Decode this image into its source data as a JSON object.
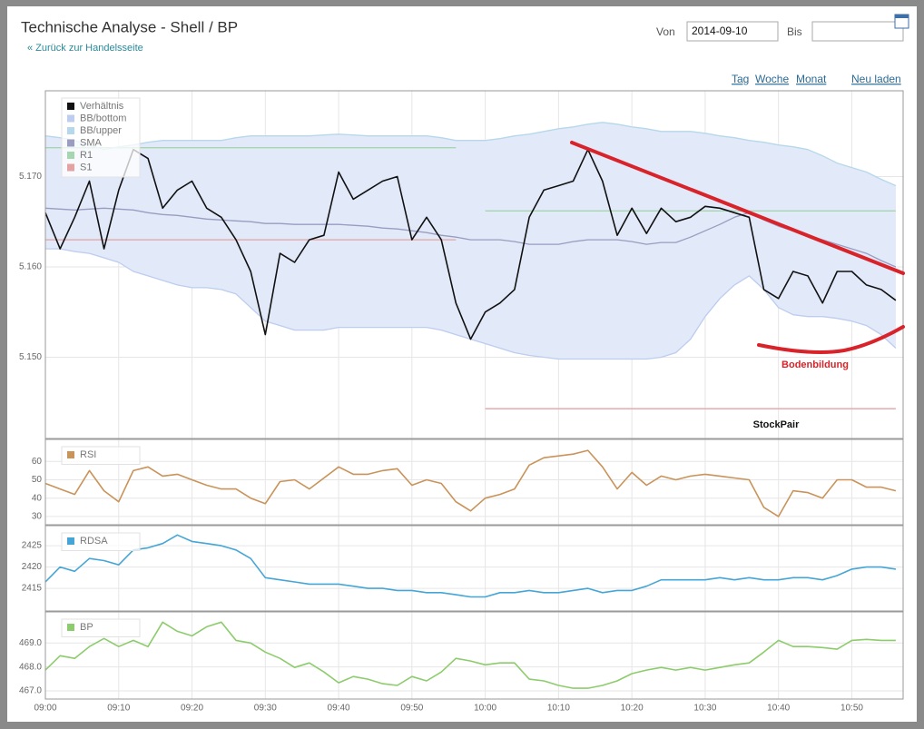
{
  "header": {
    "title": "Technische Analyse - Shell / BP",
    "back_link": "« Zurück zur Handelsseite",
    "from_label": "Von",
    "from_value": "2014-09-10",
    "to_label": "Bis",
    "links": [
      "Tag",
      "Woche",
      "Monat",
      "Neu laden"
    ]
  },
  "chart_data": [
    {
      "type": "line",
      "x": [
        "09:00",
        "09:02",
        "09:04",
        "09:06",
        "09:08",
        "09:10",
        "09:12",
        "09:14",
        "09:16",
        "09:18",
        "09:20",
        "09:22",
        "09:24",
        "09:26",
        "09:28",
        "09:30",
        "09:32",
        "09:34",
        "09:36",
        "09:38",
        "09:40",
        "09:42",
        "09:44",
        "09:46",
        "09:48",
        "09:50",
        "09:52",
        "09:54",
        "09:56",
        "09:58",
        "10:00",
        "10:02",
        "10:04",
        "10:06",
        "10:08",
        "10:10",
        "10:12",
        "10:14",
        "10:16",
        "10:18",
        "10:20",
        "10:22",
        "10:24",
        "10:26",
        "10:28",
        "10:30",
        "10:32",
        "10:34",
        "10:36",
        "10:38",
        "10:40",
        "10:42",
        "10:44",
        "10:46",
        "10:48",
        "10:50",
        "10:52",
        "10:54",
        "10:56"
      ],
      "xlim": [
        "09:00",
        "10:57"
      ],
      "xticks": [
        "09:00",
        "09:10",
        "09:20",
        "09:30",
        "09:40",
        "09:50",
        "10:00",
        "10:10",
        "10:20",
        "10:30",
        "10:40",
        "10:50"
      ],
      "ylim": [
        5.141,
        5.1795
      ],
      "yticks": [
        {
          "value": 5.15,
          "label": "5.150"
        },
        {
          "value": 5.16,
          "label": "5.160"
        },
        {
          "value": 5.17,
          "label": "5.170"
        }
      ],
      "grid": true,
      "band_fill": "#e2e9f9",
      "annotations": [
        "Bodenbildung",
        "StockPair"
      ],
      "series": [
        {
          "name": "Verhältnis",
          "color": "#111111",
          "values": [
            5.166,
            5.162,
            5.1655,
            5.1695,
            5.162,
            5.1685,
            5.173,
            5.172,
            5.1665,
            5.1685,
            5.1695,
            5.1665,
            5.1655,
            5.163,
            5.1595,
            5.1525,
            5.1615,
            5.1605,
            5.163,
            5.1635,
            5.1705,
            5.1675,
            5.1685,
            5.1695,
            5.17,
            5.163,
            5.1655,
            5.163,
            5.156,
            5.152,
            5.155,
            5.156,
            5.1575,
            5.1655,
            5.1685,
            5.169,
            5.1695,
            5.173,
            5.1695,
            5.1635,
            5.1665,
            5.1637,
            5.1665,
            5.165,
            5.1655,
            5.1667,
            5.1665,
            5.166,
            5.1655,
            5.1575,
            5.1565,
            5.1595,
            5.159,
            5.156,
            5.1595,
            5.1595,
            5.158,
            5.1575,
            5.1563
          ]
        },
        {
          "name": "BB/bottom",
          "color": "#bccdef",
          "values": [
            5.162,
            5.162,
            5.1617,
            5.1615,
            5.161,
            5.1605,
            5.1595,
            5.159,
            5.1585,
            5.158,
            5.1577,
            5.1577,
            5.1575,
            5.157,
            5.1555,
            5.154,
            5.1535,
            5.153,
            5.153,
            5.153,
            5.1533,
            5.1533,
            5.1533,
            5.1533,
            5.1533,
            5.1533,
            5.1533,
            5.153,
            5.1525,
            5.152,
            5.1515,
            5.151,
            5.1505,
            5.1502,
            5.15,
            5.1498,
            5.1498,
            5.1498,
            5.1498,
            5.1498,
            5.1498,
            5.1498,
            5.15,
            5.1505,
            5.152,
            5.1545,
            5.1565,
            5.158,
            5.159,
            5.1575,
            5.1555,
            5.1547,
            5.1545,
            5.1545,
            5.1543,
            5.154,
            5.1535,
            5.1525,
            5.151
          ]
        },
        {
          "name": "BB/upper",
          "color": "#b6d8ea",
          "values": [
            5.1745,
            5.1743,
            5.174,
            5.1735,
            5.173,
            5.1733,
            5.1735,
            5.1738,
            5.174,
            5.174,
            5.174,
            5.174,
            5.174,
            5.1743,
            5.1745,
            5.1745,
            5.1745,
            5.1745,
            5.1745,
            5.1746,
            5.1747,
            5.1746,
            5.1745,
            5.1745,
            5.1745,
            5.1745,
            5.1745,
            5.1743,
            5.174,
            5.174,
            5.174,
            5.1742,
            5.1745,
            5.1747,
            5.175,
            5.1753,
            5.1755,
            5.1758,
            5.176,
            5.1758,
            5.1755,
            5.1753,
            5.175,
            5.175,
            5.175,
            5.1748,
            5.1745,
            5.1743,
            5.174,
            5.1738,
            5.1735,
            5.1733,
            5.173,
            5.1723,
            5.1715,
            5.171,
            5.1705,
            5.1697,
            5.169
          ]
        },
        {
          "name": "SMA",
          "color": "#9a9cc0",
          "values": [
            5.1665,
            5.1664,
            5.1663,
            5.1664,
            5.1665,
            5.1664,
            5.1663,
            5.166,
            5.1658,
            5.1657,
            5.1655,
            5.1653,
            5.1652,
            5.1651,
            5.165,
            5.1648,
            5.1648,
            5.1647,
            5.1647,
            5.1647,
            5.1647,
            5.1646,
            5.1645,
            5.1643,
            5.1642,
            5.164,
            5.1638,
            5.1635,
            5.1633,
            5.163,
            5.163,
            5.163,
            5.1628,
            5.1625,
            5.1625,
            5.1625,
            5.1628,
            5.163,
            5.163,
            5.163,
            5.1628,
            5.1625,
            5.1627,
            5.1627,
            5.1633,
            5.164,
            5.1647,
            5.1655,
            5.166,
            5.1652,
            5.1645,
            5.164,
            5.1635,
            5.163,
            5.1625,
            5.162,
            5.1615,
            5.1607,
            5.16
          ]
        },
        {
          "name": "R1",
          "color": "#a6d6b0",
          "values": [
            5.1732,
            5.1732,
            5.1732,
            5.1732,
            5.1732,
            5.1732,
            5.1732,
            5.1732,
            5.1732,
            5.1732,
            5.1732,
            5.1732,
            5.1732,
            5.1732,
            5.1732,
            5.1732,
            5.1732,
            5.1732,
            5.1732,
            5.1732,
            5.1732,
            5.1732,
            5.1732,
            5.1732,
            5.1732,
            5.1732,
            5.1732,
            5.1732,
            5.1732,
            null,
            5.1662,
            5.1662,
            5.1662,
            5.1662,
            5.1662,
            5.1662,
            5.1662,
            5.1662,
            5.1662,
            5.1662,
            5.1662,
            5.1662,
            5.1662,
            5.1662,
            5.1662,
            5.1662,
            5.1662,
            5.1662,
            5.1662,
            5.1662,
            5.1662,
            5.1662,
            5.1662,
            5.1662,
            5.1662,
            5.1662,
            5.1662,
            5.1662,
            5.1662
          ]
        },
        {
          "name": "S1",
          "color": "#e3a3a3",
          "values": [
            5.163,
            5.163,
            5.163,
            5.163,
            5.163,
            5.163,
            5.163,
            5.163,
            5.163,
            5.163,
            5.163,
            5.163,
            5.163,
            5.163,
            5.163,
            5.163,
            5.163,
            5.163,
            5.163,
            5.163,
            5.163,
            5.163,
            5.163,
            5.163,
            5.163,
            5.163,
            5.163,
            5.163,
            5.163,
            null,
            5.1443,
            5.1443,
            5.1443,
            5.1443,
            5.1443,
            5.1443,
            5.1443,
            5.1443,
            5.1443,
            5.1443,
            5.1443,
            5.1443,
            5.1443,
            5.1443,
            5.1443,
            5.1443,
            5.1443,
            5.1443,
            5.1443,
            5.1443,
            5.1443,
            5.1443,
            5.1443,
            5.1443,
            5.1443,
            5.1443,
            5.1443,
            5.1443,
            5.1443
          ]
        }
      ]
    },
    {
      "type": "line",
      "ylim": [
        25.5,
        72
      ],
      "yticks": [
        30,
        40,
        50,
        60
      ],
      "grid": true,
      "series": [
        {
          "name": "RSI",
          "color": "#c9935a",
          "values": [
            48,
            45,
            42,
            55,
            44,
            38,
            55,
            57,
            52,
            53,
            50,
            47,
            45,
            45,
            40,
            37,
            49,
            50,
            45,
            51,
            57,
            53,
            53,
            55,
            56,
            47,
            50,
            48,
            38,
            33,
            40,
            42,
            45,
            58,
            62,
            63,
            64,
            66,
            57,
            45,
            54,
            47,
            52,
            50,
            52,
            53,
            52,
            51,
            50,
            35,
            30,
            44,
            43,
            40,
            50,
            50,
            46,
            46,
            44
          ]
        }
      ]
    },
    {
      "type": "line",
      "ylim": [
        2409.7,
        2429.7
      ],
      "yticks": [
        2415,
        2420,
        2425
      ],
      "grid": true,
      "series": [
        {
          "name": "RDSA",
          "color": "#45a6d6",
          "values": [
            2416.5,
            2420,
            2419,
            2422,
            2421.5,
            2420.5,
            2424,
            2424.5,
            2425.5,
            2427.5,
            2426,
            2425.5,
            2425,
            2424,
            2422,
            2417.5,
            2417,
            2416.5,
            2416,
            2416,
            2416,
            2415.5,
            2415,
            2415,
            2414.5,
            2414.5,
            2414,
            2414,
            2413.5,
            2413,
            2413,
            2414,
            2414,
            2414.5,
            2414,
            2414,
            2414.5,
            2415,
            2414,
            2414.5,
            2414.5,
            2415.5,
            2417,
            2417,
            2417,
            2417,
            2417.5,
            2417,
            2417.5,
            2417,
            2417,
            2417.5,
            2417.5,
            2417,
            2418,
            2419.5,
            2420,
            2420,
            2419.5
          ]
        }
      ]
    },
    {
      "type": "line",
      "ylim": [
        466.66,
        470.3
      ],
      "yticks": [
        {
          "value": 467,
          "label": "467.0"
        },
        {
          "value": 468,
          "label": "468.0"
        },
        {
          "value": 469,
          "label": "469.0"
        }
      ],
      "grid": true,
      "series": [
        {
          "name": "BP",
          "color": "#8dcc6c",
          "values": [
            467.87,
            468.47,
            468.36,
            468.85,
            469.19,
            468.85,
            469.11,
            468.85,
            469.87,
            469.49,
            469.3,
            469.68,
            469.87,
            469.11,
            469,
            468.62,
            468.36,
            467.98,
            468.17,
            467.79,
            467.34,
            467.6,
            467.49,
            467.3,
            467.23,
            467.6,
            467.42,
            467.79,
            468.36,
            468.25,
            468.09,
            468.17,
            468.17,
            467.49,
            467.42,
            467.23,
            467.11,
            467.11,
            467.23,
            467.42,
            467.72,
            467.87,
            467.98,
            467.87,
            467.98,
            467.87,
            467.98,
            468.09,
            468.17,
            468.62,
            469.11,
            468.85,
            468.85,
            468.81,
            468.74,
            469.11,
            469.15,
            469.11,
            469.11
          ]
        }
      ]
    }
  ]
}
